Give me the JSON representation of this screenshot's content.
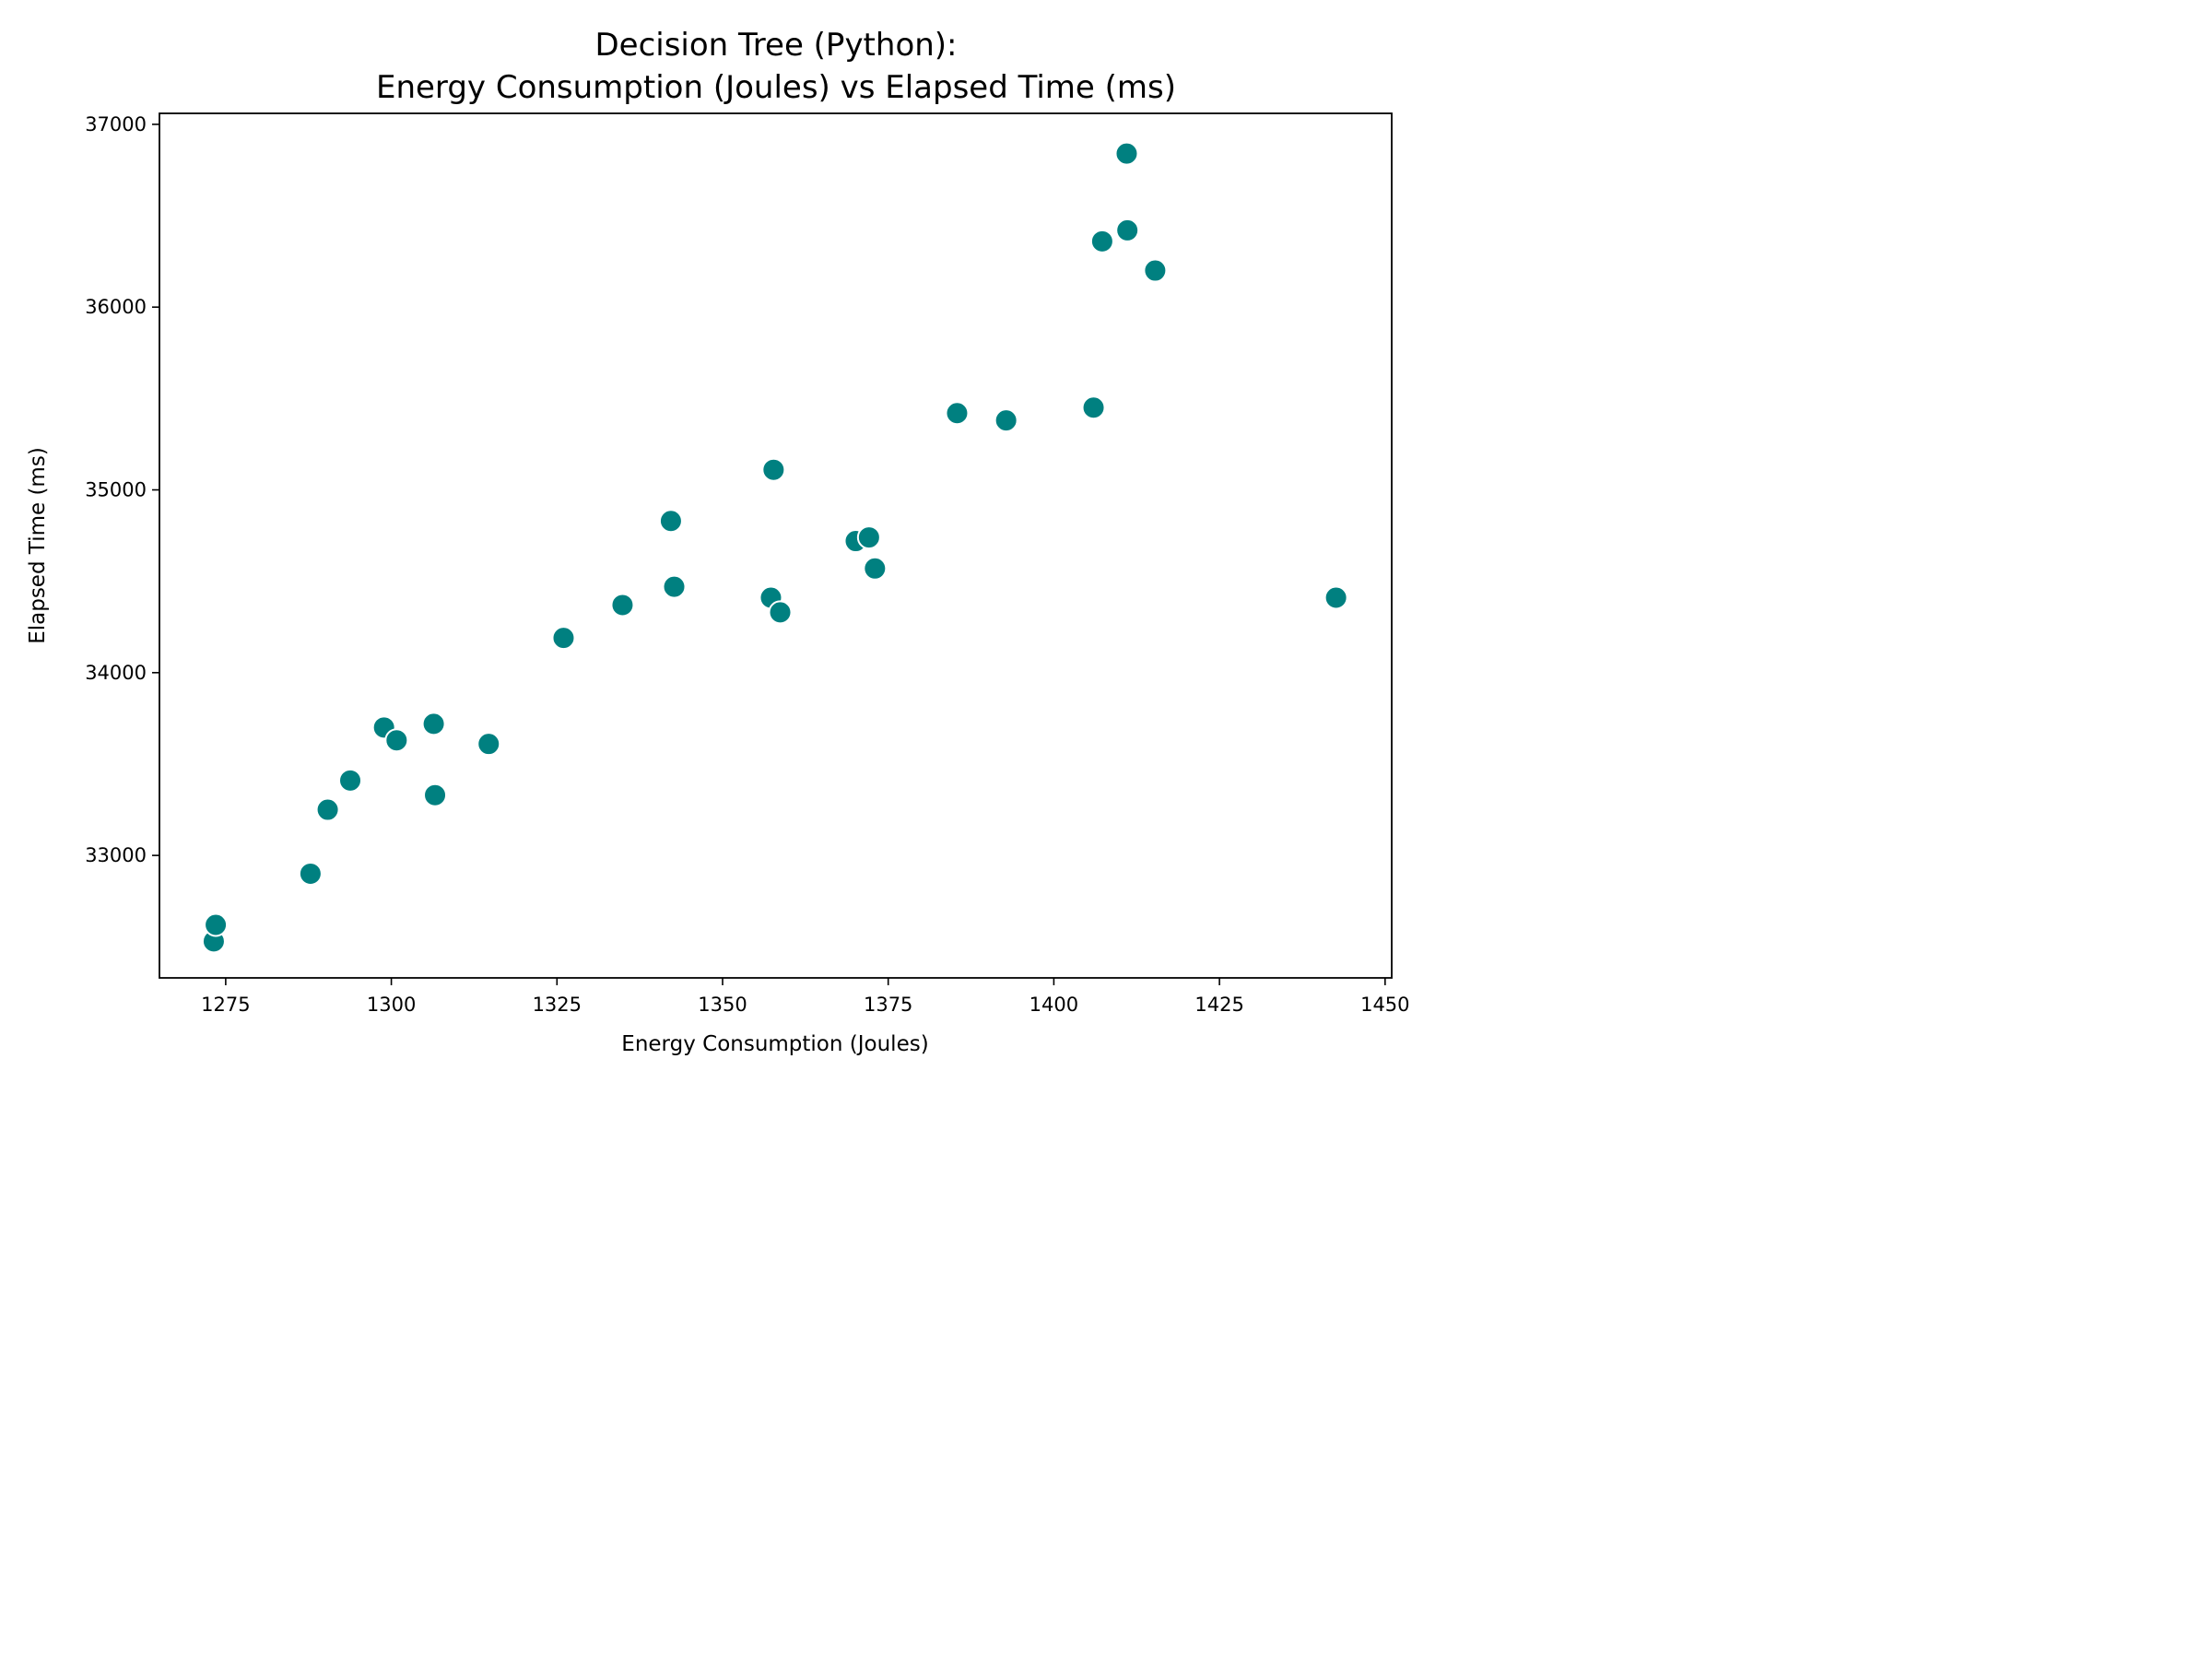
{
  "chart_data": {
    "type": "scatter",
    "title_line1": "Decision Tree (Python):",
    "title_line2": "Energy Consumption (Joules) vs Elapsed Time (ms)",
    "xlabel": "Energy Consumption (Joules)",
    "ylabel": "Elapsed Time (ms)",
    "xlim": [
      1265,
      1451
    ],
    "ylim": [
      32330,
      37060
    ],
    "xticks": [
      1275,
      1300,
      1325,
      1350,
      1375,
      1400,
      1425,
      1450
    ],
    "yticks": [
      33000,
      34000,
      35000,
      36000,
      37000
    ],
    "grid": false,
    "legend": "none",
    "marker_color": "#008080",
    "points": [
      {
        "x": 1273.2,
        "y": 32530
      },
      {
        "x": 1273.5,
        "y": 32620
      },
      {
        "x": 1287.8,
        "y": 32900
      },
      {
        "x": 1290.4,
        "y": 33250
      },
      {
        "x": 1293.8,
        "y": 33410
      },
      {
        "x": 1298.9,
        "y": 33700
      },
      {
        "x": 1300.8,
        "y": 33630
      },
      {
        "x": 1306.4,
        "y": 33720
      },
      {
        "x": 1306.6,
        "y": 33330
      },
      {
        "x": 1314.7,
        "y": 33610
      },
      {
        "x": 1326.0,
        "y": 34190
      },
      {
        "x": 1334.9,
        "y": 34370
      },
      {
        "x": 1342.2,
        "y": 34830
      },
      {
        "x": 1342.7,
        "y": 34470
      },
      {
        "x": 1357.3,
        "y": 34410
      },
      {
        "x": 1357.7,
        "y": 35110
      },
      {
        "x": 1358.7,
        "y": 34330
      },
      {
        "x": 1370.1,
        "y": 34720
      },
      {
        "x": 1372.1,
        "y": 34740
      },
      {
        "x": 1373.0,
        "y": 34570
      },
      {
        "x": 1385.4,
        "y": 35420
      },
      {
        "x": 1392.8,
        "y": 35380
      },
      {
        "x": 1406.0,
        "y": 35450
      },
      {
        "x": 1407.3,
        "y": 36360
      },
      {
        "x": 1411.0,
        "y": 36840
      },
      {
        "x": 1411.1,
        "y": 36420
      },
      {
        "x": 1415.3,
        "y": 36200
      },
      {
        "x": 1442.6,
        "y": 34410
      }
    ]
  }
}
